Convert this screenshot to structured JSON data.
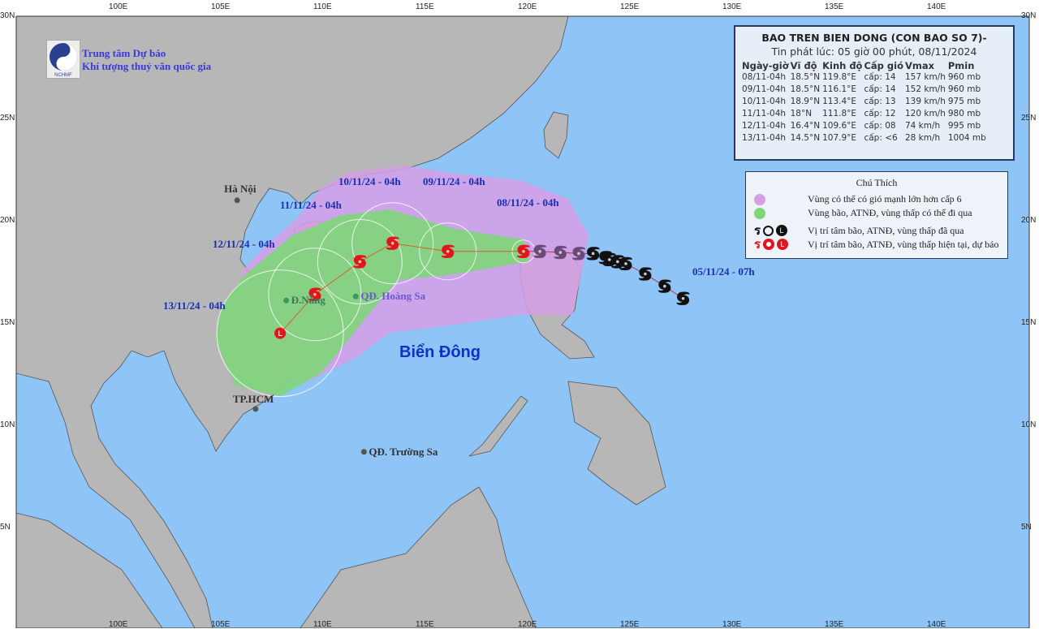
{
  "header": {
    "org_line1": "Trung tâm Dự báo",
    "org_line2": "Khí tượng thuỷ văn quốc gia",
    "logo_text": "NCHMF"
  },
  "info_box": {
    "title": "BAO TREN BIEN DONG (CON BAO SO 7)-",
    "issued": "Tin phát lúc: 05 giờ 00 phút, 08/11/2024",
    "columns": [
      "Ngày-giờ",
      "Vĩ độ",
      "Kinh độ",
      "Cấp gió",
      "Vmax",
      "Pmin"
    ],
    "rows": [
      [
        "08/11-04h",
        "18.5°N",
        "119.8°E",
        "cấp: 14",
        "157 km/h",
        "960 mb"
      ],
      [
        "09/11-04h",
        "18.5°N",
        "116.1°E",
        "cấp: 14",
        "152 km/h",
        "960 mb"
      ],
      [
        "10/11-04h",
        "18.9°N",
        "113.4°E",
        "cấp: 13",
        "139 km/h",
        "975 mb"
      ],
      [
        "11/11-04h",
        "18°N",
        "111.8°E",
        "cấp: 12",
        "120 km/h",
        "980 mb"
      ],
      [
        "12/11-04h",
        "16.4°N",
        "109.6°E",
        "cấp: 08",
        "74 km/h",
        "995 mb"
      ],
      [
        "13/11-04h",
        "14.5°N",
        "107.9°E",
        "cấp: <6",
        "28 km/h",
        "1004 mb"
      ]
    ]
  },
  "legend": {
    "title": "Chú Thích",
    "items": [
      {
        "label": "Vùng có thể có gió mạnh lớn hơn cấp 6",
        "color": "#d79fe6"
      },
      {
        "label": "Vùng bão, ATNĐ, vùng thấp có thể đi qua",
        "color": "#7fd67a"
      },
      {
        "label": "Vị trí tâm bão, ATNĐ, vùng thấp đã qua",
        "color": "#111111"
      },
      {
        "label": "Vị trí tâm bão, ATNĐ, vùng thấp hiện tại, dự báo",
        "color": "#e0161c"
      }
    ]
  },
  "map": {
    "sea_color": "#8ec4f6",
    "land_color": "#b7b7b7",
    "lon_ticks": [
      "100E",
      "105E",
      "110E",
      "115E",
      "120E",
      "125E",
      "130E",
      "135E",
      "140E"
    ],
    "lat_ticks": [
      "30N",
      "25N",
      "20N",
      "15N",
      "10N",
      "5N"
    ],
    "sea_name": "Biển Đông",
    "places": [
      {
        "name": "Hà Nội",
        "lat": 21.0,
        "lon": 105.8
      },
      {
        "name": "Đ.Nẵng",
        "lat": 16.1,
        "lon": 108.2
      },
      {
        "name": "QĐ. Hoàng Sa",
        "lat": 16.3,
        "lon": 111.6
      },
      {
        "name": "TP.HCM",
        "lat": 10.8,
        "lon": 106.7
      },
      {
        "name": "QĐ. Trường Sa",
        "lat": 8.7,
        "lon": 112.0
      }
    ],
    "track_labels": [
      "08/11/24 - 04h",
      "09/11/24 - 04h",
      "10/11/24 - 04h",
      "11/11/24 - 04h",
      "12/11/24 - 04h",
      "13/11/24 - 04h",
      "05/11/24 - 07h"
    ],
    "forecast_track": [
      {
        "lat": 18.5,
        "lon": 119.8,
        "type": "storm"
      },
      {
        "lat": 18.5,
        "lon": 116.1,
        "type": "storm"
      },
      {
        "lat": 18.9,
        "lon": 113.4,
        "type": "storm"
      },
      {
        "lat": 18.0,
        "lon": 111.8,
        "type": "storm"
      },
      {
        "lat": 16.4,
        "lon": 109.6,
        "type": "storm"
      },
      {
        "lat": 14.5,
        "lon": 107.9,
        "type": "low"
      }
    ],
    "past_track": [
      {
        "lat": 18.5,
        "lon": 120.6
      },
      {
        "lat": 18.45,
        "lon": 121.6
      },
      {
        "lat": 18.4,
        "lon": 122.5
      },
      {
        "lat": 18.4,
        "lon": 123.2
      },
      {
        "lat": 18.2,
        "lon": 123.8
      },
      {
        "lat": 18.1,
        "lon": 124.0
      },
      {
        "lat": 18.0,
        "lon": 124.4
      },
      {
        "lat": 17.9,
        "lon": 124.8
      },
      {
        "lat": 17.4,
        "lon": 125.75
      },
      {
        "lat": 16.8,
        "lon": 126.7
      },
      {
        "lat": 16.2,
        "lon": 127.6
      }
    ]
  }
}
